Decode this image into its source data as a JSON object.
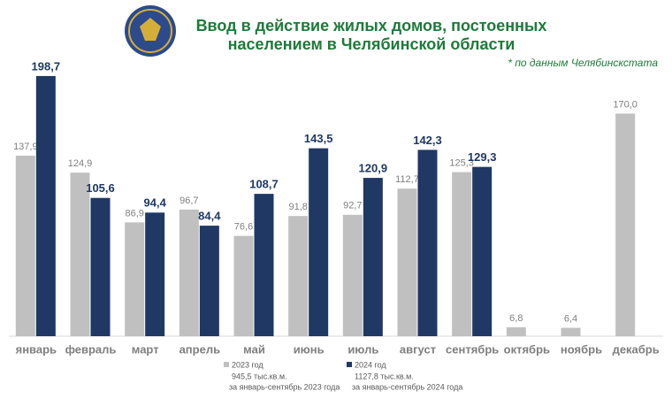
{
  "chart_data": {
    "type": "bar",
    "title": [
      "Ввод в действие жилых домов, постоенных",
      "населением в Челябинской области"
    ],
    "subtitle": "* по данным Челябинскстата",
    "categories": [
      "январь",
      "февраль",
      "март",
      "апрель",
      "май",
      "июнь",
      "июль",
      "август",
      "сентябрь",
      "октябрь",
      "ноябрь",
      "декабрь"
    ],
    "series": [
      {
        "name": "2023 год",
        "color": "#c0c0c0",
        "note": [
          "945,5 тыс.кв.м.",
          "за январь-сентябрь 2023 года"
        ],
        "values": [
          137.9,
          124.9,
          86.9,
          96.7,
          76.6,
          91.8,
          92.7,
          112.7,
          125.3,
          6.8,
          6.4,
          170.0
        ],
        "value_labels": [
          "137,9",
          "124,9",
          "86,9",
          "96,7",
          "76,6",
          "91,8",
          "92,7",
          "112,7",
          "125,3",
          "6,8",
          "6,4",
          "170,0"
        ]
      },
      {
        "name": "2024 год",
        "color": "#1f3864",
        "note": [
          "1127,8  тыс.кв.м.",
          "за январь-сентябрь 2024 года"
        ],
        "values": [
          198.7,
          105.6,
          94.4,
          84.4,
          108.7,
          143.5,
          120.9,
          142.3,
          129.3,
          null,
          null,
          null
        ],
        "value_labels": [
          "198,7",
          "105,6",
          "94,4",
          "84,4",
          "108,7",
          "143,5",
          "120,9",
          "142,3",
          "129,3",
          null,
          null,
          null
        ]
      }
    ],
    "ylim": [
      0,
      200
    ]
  }
}
